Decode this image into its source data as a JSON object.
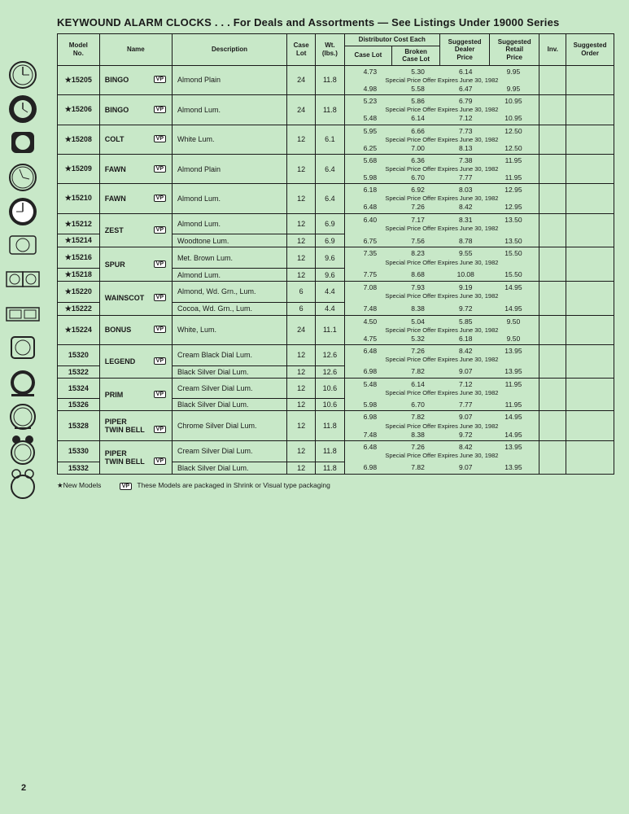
{
  "title": "KEYWOUND ALARM CLOCKS . . . For Deals and Assortments — See Listings Under 19000 Series",
  "headers": {
    "model": "Model\nNo.",
    "name": "Name",
    "desc": "Description",
    "caseLot": "Case\nLot",
    "wt": "Wt.\n(lbs.)",
    "distGroup": "Distributor Cost Each",
    "distCase": "Case Lot",
    "distBroken": "Broken\nCase Lot",
    "dealer": "Suggested\nDealer\nPrice",
    "retail": "Suggested\nRetail\nPrice",
    "inv": "Inv.",
    "order": "Suggested\nOrder"
  },
  "specialText": "Special Price Offer Expires June 30, 1982",
  "groups": [
    {
      "name": "BINGO",
      "vp": true,
      "rowspan": 1,
      "rows": [
        {
          "model": "★15205",
          "desc": "Almond Plain",
          "case": "24",
          "wt": "11.8",
          "p1": [
            "4.73",
            "5.30",
            "6.14",
            "9.95"
          ],
          "p2": [
            "4.98",
            "5.58",
            "6.47",
            "9.95"
          ]
        }
      ]
    },
    {
      "name": "BINGO",
      "vp": true,
      "rowspan": 1,
      "rows": [
        {
          "model": "★15206",
          "desc": "Almond Lum.",
          "case": "24",
          "wt": "11.8",
          "p1": [
            "5.23",
            "5.86",
            "6.79",
            "10.95"
          ],
          "p2": [
            "5.48",
            "6.14",
            "7.12",
            "10.95"
          ]
        }
      ]
    },
    {
      "name": "COLT",
      "vp": true,
      "rowspan": 1,
      "rows": [
        {
          "model": "★15208",
          "desc": "White Lum.",
          "case": "12",
          "wt": "6.1",
          "p1": [
            "5.95",
            "6.66",
            "7.73",
            "12.50"
          ],
          "p2": [
            "6.25",
            "7.00",
            "8.13",
            "12.50"
          ]
        }
      ]
    },
    {
      "name": "FAWN",
      "vp": true,
      "rowspan": 1,
      "rows": [
        {
          "model": "★15209",
          "desc": "Almond Plain",
          "case": "12",
          "wt": "6.4",
          "p1": [
            "5.68",
            "6.36",
            "7.38",
            "11.95"
          ],
          "p2": [
            "5.98",
            "6.70",
            "7.77",
            "11.95"
          ]
        }
      ]
    },
    {
      "name": "FAWN",
      "vp": true,
      "rowspan": 1,
      "rows": [
        {
          "model": "★15210",
          "desc": "Almond Lum.",
          "case": "12",
          "wt": "6.4",
          "p1": [
            "6.18",
            "6.92",
            "8.03",
            "12.95"
          ],
          "p2": [
            "6.48",
            "7.26",
            "8.42",
            "12.95"
          ]
        }
      ]
    },
    {
      "name": "ZEST",
      "vp": true,
      "rowspan": 2,
      "rows": [
        {
          "model": "★15212",
          "desc": "Almond Lum.",
          "case": "12",
          "wt": "6.9",
          "p1": [
            "6.40",
            "7.17",
            "8.31",
            "13.50"
          ],
          "special": true
        },
        {
          "model": "★15214",
          "desc": "Woodtone Lum.",
          "case": "12",
          "wt": "6.9",
          "p2": [
            "6.75",
            "7.56",
            "8.78",
            "13.50"
          ]
        }
      ]
    },
    {
      "name": "SPUR",
      "vp": true,
      "rowspan": 2,
      "rows": [
        {
          "model": "★15216",
          "desc": "Met. Brown Lum.",
          "case": "12",
          "wt": "9.6",
          "p1": [
            "7.35",
            "8.23",
            "9.55",
            "15.50"
          ],
          "special": true
        },
        {
          "model": "★15218",
          "desc": "Almond Lum.",
          "case": "12",
          "wt": "9.6",
          "p2": [
            "7.75",
            "8.68",
            "10.08",
            "15.50"
          ]
        }
      ]
    },
    {
      "name": "WAINSCOT",
      "vp": true,
      "rowspan": 2,
      "rows": [
        {
          "model": "★15220",
          "desc": "Almond, Wd. Grn., Lum.",
          "case": "6",
          "wt": "4.4",
          "p1": [
            "7.08",
            "7.93",
            "9.19",
            "14.95"
          ],
          "special": true
        },
        {
          "model": "★15222",
          "desc": "Cocoa, Wd. Grn., Lum.",
          "case": "6",
          "wt": "4.4",
          "p2": [
            "7.48",
            "8.38",
            "9.72",
            "14.95"
          ]
        }
      ]
    },
    {
      "name": "BONUS",
      "vp": true,
      "rowspan": 1,
      "rows": [
        {
          "model": "★15224",
          "desc": "White, Lum.",
          "case": "24",
          "wt": "11.1",
          "p1": [
            "4.50",
            "5.04",
            "5.85",
            "9.50"
          ],
          "p2": [
            "4.75",
            "5.32",
            "6.18",
            "9.50"
          ]
        }
      ]
    },
    {
      "name": "LEGEND",
      "vp": true,
      "rowspan": 2,
      "rows": [
        {
          "model": "15320",
          "desc": "Cream Black Dial Lum.",
          "case": "12",
          "wt": "12.6",
          "p1": [
            "6.48",
            "7.26",
            "8.42",
            "13.95"
          ],
          "special": true
        },
        {
          "model": "15322",
          "desc": "Black Silver Dial Lum.",
          "case": "12",
          "wt": "12.6",
          "p2": [
            "6.98",
            "7.82",
            "9.07",
            "13.95"
          ]
        }
      ]
    },
    {
      "name": "PRIM",
      "vp": true,
      "rowspan": 2,
      "rows": [
        {
          "model": "15324",
          "desc": "Cream Silver Dial Lum.",
          "case": "12",
          "wt": "10.6",
          "p1": [
            "5.48",
            "6.14",
            "7.12",
            "11.95"
          ],
          "special": true
        },
        {
          "model": "15326",
          "desc": "Black Silver Dial Lum.",
          "case": "12",
          "wt": "10.6",
          "p2": [
            "5.98",
            "6.70",
            "7.77",
            "11.95"
          ]
        }
      ]
    },
    {
      "name": "PIPER\nTWIN BELL",
      "vp": true,
      "rowspan": 1,
      "rows": [
        {
          "model": "15328",
          "desc": "Chrome Silver Dial Lum.",
          "case": "12",
          "wt": "11.8",
          "p1": [
            "6.98",
            "7.82",
            "9.07",
            "14.95"
          ],
          "p2": [
            "7.48",
            "8.38",
            "9.72",
            "14.95"
          ]
        }
      ]
    },
    {
      "name": "PIPER\nTWIN BELL",
      "vp": true,
      "rowspan": 2,
      "rows": [
        {
          "model": "15330",
          "desc": "Cream Silver Dial Lum.",
          "case": "12",
          "wt": "11.8",
          "p1": [
            "6.48",
            "7.26",
            "8.42",
            "13.95"
          ],
          "special": true
        },
        {
          "model": "15332",
          "desc": "Black Silver Dial Lum.",
          "case": "12",
          "wt": "11.8",
          "p2": [
            "6.98",
            "7.82",
            "9.07",
            "13.95"
          ]
        }
      ]
    }
  ],
  "footnotes": {
    "star": "★New Models",
    "vp": "These Models are packaged in Shrink or Visual type packaging"
  },
  "pageNum": "2",
  "colors": {
    "bg": "#c8e8c8",
    "ink": "#1a1a1a"
  }
}
